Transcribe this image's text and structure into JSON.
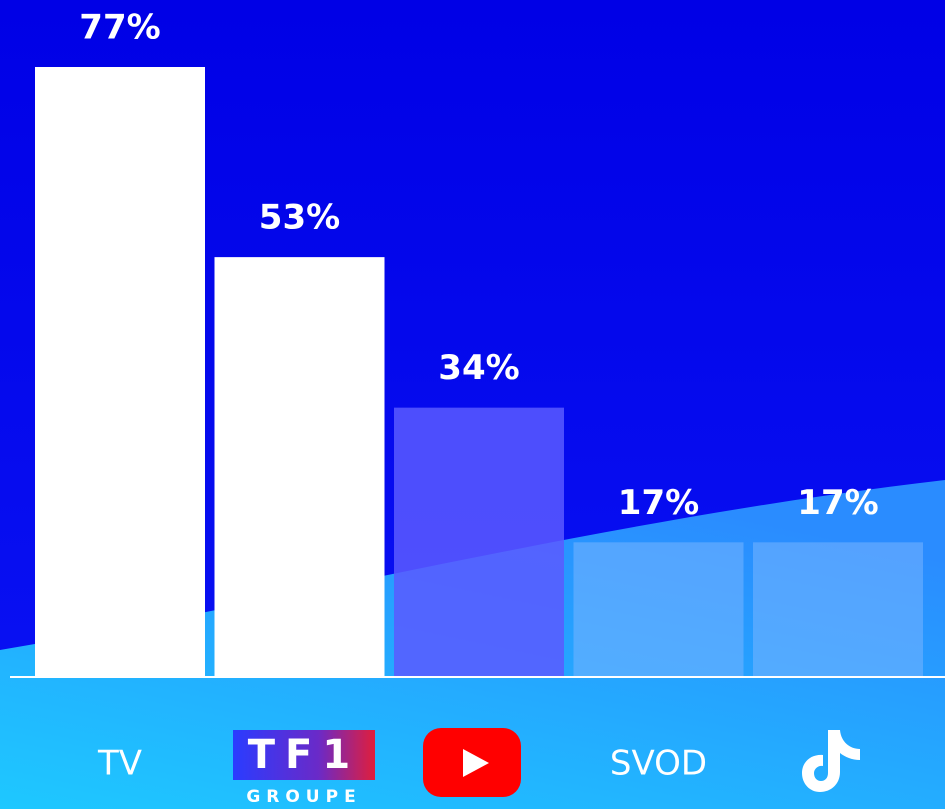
{
  "chart_data": {
    "type": "bar",
    "categories": [
      "TV",
      "TF1",
      null,
      "SVOD",
      null
    ],
    "logo_subtext": "GROUPE",
    "values": [
      77,
      53,
      34,
      17,
      17
    ],
    "value_labels": [
      "77%",
      "53%",
      "34%",
      "17%",
      "17%"
    ],
    "colors": [
      "#ffffff",
      "#ffffff",
      "rgba(90,90,255,0.85)",
      "rgba(120,180,255,0.55)",
      "rgba(120,180,255,0.55)"
    ]
  }
}
